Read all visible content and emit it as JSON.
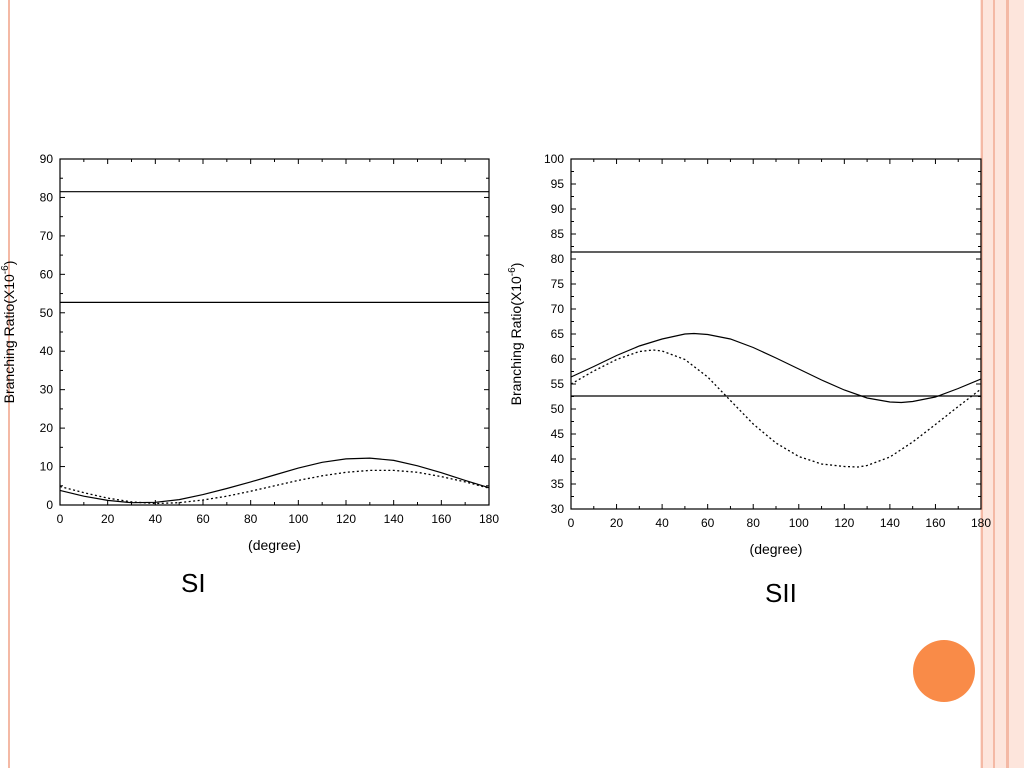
{
  "slide": {
    "accent_color": "#f98b48",
    "stripe_color": "#f4b9a5",
    "stripe_fill": "#fde5dc"
  },
  "captions": {
    "left": "SI",
    "right": "SII"
  },
  "chart_data": [
    {
      "type": "line",
      "xlabel": "(degree)",
      "ylabel": "Branching Ratio(X10",
      "ylabel_exp": "-6",
      "ylabel_close": ")",
      "xlim": [
        0,
        180
      ],
      "ylim": [
        0,
        90
      ],
      "xticks": [
        0,
        20,
        40,
        60,
        80,
        100,
        120,
        140,
        160,
        180
      ],
      "yticks": [
        0,
        10,
        20,
        30,
        40,
        50,
        60,
        70,
        80,
        90
      ],
      "grid": false,
      "series": [
        {
          "style": "solid",
          "x": [
            0,
            180
          ],
          "y": [
            81.5,
            81.5
          ]
        },
        {
          "style": "solid",
          "x": [
            0,
            180
          ],
          "y": [
            52.7,
            52.7
          ]
        },
        {
          "style": "solid",
          "x": [
            0,
            10,
            20,
            30,
            40,
            50,
            60,
            70,
            80,
            90,
            100,
            110,
            120,
            130,
            140,
            150,
            160,
            170,
            180
          ],
          "y": [
            3.8,
            2.3,
            1.2,
            0.6,
            0.7,
            1.4,
            2.7,
            4.3,
            6.0,
            7.8,
            9.6,
            11.1,
            12.0,
            12.2,
            11.6,
            10.2,
            8.4,
            6.4,
            4.5
          ]
        },
        {
          "style": "dotted",
          "x": [
            0,
            10,
            20,
            30,
            40,
            50,
            60,
            70,
            80,
            90,
            100,
            110,
            120,
            130,
            140,
            150,
            160,
            170,
            180
          ],
          "y": [
            4.8,
            3.2,
            1.8,
            0.8,
            0.4,
            0.6,
            1.3,
            2.3,
            3.6,
            5.0,
            6.4,
            7.6,
            8.5,
            9.0,
            9.0,
            8.5,
            7.4,
            6.0,
            4.4
          ]
        }
      ]
    },
    {
      "type": "line",
      "xlabel": "(degree)",
      "ylabel": "Branching Ratio(X10",
      "ylabel_exp": "-6",
      "ylabel_close": ")",
      "xlim": [
        0,
        180
      ],
      "ylim": [
        30,
        100
      ],
      "xticks": [
        0,
        20,
        40,
        60,
        80,
        100,
        120,
        140,
        160,
        180
      ],
      "yticks": [
        30,
        35,
        40,
        45,
        50,
        55,
        60,
        65,
        70,
        75,
        80,
        85,
        90,
        95,
        100
      ],
      "grid": false,
      "series": [
        {
          "style": "solid",
          "x": [
            0,
            180
          ],
          "y": [
            81.4,
            81.4
          ]
        },
        {
          "style": "solid",
          "x": [
            0,
            180
          ],
          "y": [
            52.6,
            52.6
          ]
        },
        {
          "style": "solid",
          "x": [
            0,
            10,
            20,
            30,
            40,
            50,
            54,
            60,
            70,
            80,
            90,
            100,
            110,
            120,
            130,
            140,
            145,
            150,
            160,
            170,
            180
          ],
          "y": [
            56.4,
            58.5,
            60.7,
            62.6,
            64.0,
            65.0,
            65.1,
            64.9,
            64.0,
            62.3,
            60.2,
            58.0,
            55.8,
            53.8,
            52.2,
            51.4,
            51.3,
            51.5,
            52.4,
            54.1,
            56.0
          ]
        },
        {
          "style": "dotted",
          "x": [
            0,
            10,
            20,
            30,
            36,
            40,
            50,
            60,
            70,
            80,
            90,
            100,
            110,
            120,
            126,
            130,
            140,
            150,
            160,
            170,
            180
          ],
          "y": [
            55.0,
            57.6,
            59.9,
            61.5,
            61.8,
            61.6,
            59.9,
            56.4,
            51.7,
            47.0,
            43.2,
            40.5,
            39.0,
            38.5,
            38.4,
            38.7,
            40.4,
            43.4,
            46.9,
            50.5,
            54.0
          ]
        }
      ]
    }
  ]
}
